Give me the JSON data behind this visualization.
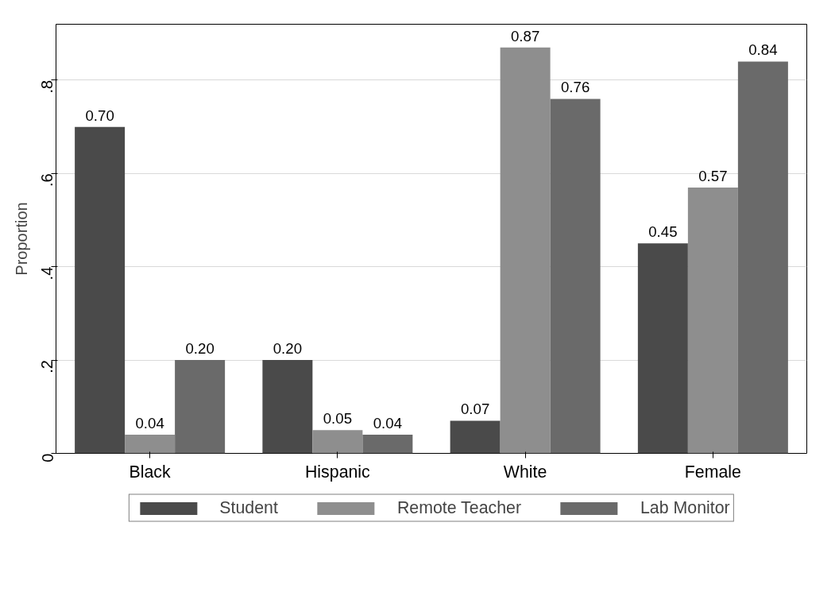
{
  "chart_data": {
    "type": "bar",
    "ylabel": "Proportion",
    "categories": [
      "Black",
      "Hispanic",
      "White",
      "Female"
    ],
    "series": [
      {
        "name": "Student",
        "color": "#4a4a4a",
        "values": [
          0.7,
          0.2,
          0.07,
          0.45
        ],
        "value_labels": [
          "0.70",
          "0.20",
          "0.07",
          "0.45"
        ]
      },
      {
        "name": "Remote Teacher",
        "color": "#8e8e8e",
        "values": [
          0.04,
          0.05,
          0.87,
          0.57
        ],
        "value_labels": [
          "0.04",
          "0.05",
          "0.87",
          "0.57"
        ]
      },
      {
        "name": "Lab Monitor",
        "color": "#6a6a6a",
        "values": [
          0.2,
          0.04,
          0.76,
          0.84
        ],
        "value_labels": [
          "0.20",
          "0.04",
          "0.76",
          "0.84"
        ]
      }
    ],
    "ylim": [
      0,
      0.92
    ],
    "yticks": [
      {
        "value": 0,
        "label": "0"
      },
      {
        "value": 0.2,
        "label": ".2"
      },
      {
        "value": 0.4,
        "label": ".4"
      },
      {
        "value": 0.6,
        "label": ".6"
      },
      {
        "value": 0.8,
        "label": ".8"
      }
    ],
    "grid": "y",
    "legend": "bottom"
  }
}
